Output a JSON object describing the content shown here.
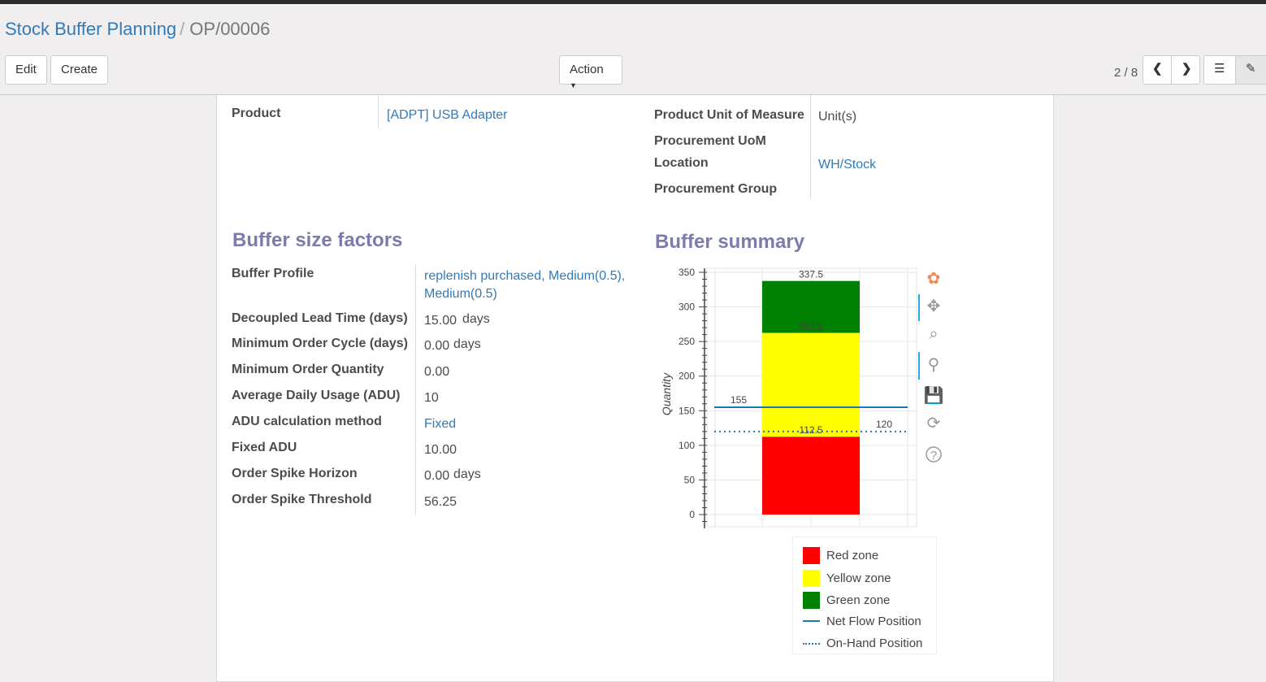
{
  "breadcrumb": {
    "parent": "Stock Buffer Planning",
    "current": "OP/00006"
  },
  "buttons": {
    "edit": "Edit",
    "create": "Create",
    "action": "Action"
  },
  "pager": {
    "text": "2 / 8"
  },
  "header_fields": {
    "product_label": "Product",
    "product_value": "[ADPT] USB Adapter",
    "uom_label": "Product Unit of Measure",
    "uom_value": "Unit(s)",
    "proc_uom_label": "Procurement UoM",
    "location_label": "Location",
    "location_value": "WH/Stock",
    "proc_group_label": "Procurement Group"
  },
  "factors": {
    "title": "Buffer size factors",
    "rows": [
      {
        "label": "Buffer Profile",
        "value": "replenish purchased, Medium(0.5),",
        "value2": "Medium(0.5)",
        "unit": ""
      },
      {
        "label": "Decoupled Lead Time (days)",
        "value": "15.00",
        "unit": "days"
      },
      {
        "label": "Minimum Order Cycle (days)",
        "value": "0.00",
        "unit": "days"
      },
      {
        "label": "Minimum Order Quantity",
        "value": "0.00",
        "unit": ""
      },
      {
        "label": "Average Daily Usage (ADU)",
        "value": "10",
        "unit": ""
      },
      {
        "label": "ADU calculation method",
        "value": "Fixed",
        "unit": ""
      },
      {
        "label": "Fixed ADU",
        "value": "10.00",
        "unit": ""
      },
      {
        "label": "Order Spike Horizon",
        "value": "0.00",
        "unit": "days"
      },
      {
        "label": "Order Spike Threshold",
        "value": "56.25",
        "unit": ""
      }
    ]
  },
  "summary": {
    "title": "Buffer summary"
  },
  "chart_data": {
    "type": "bar",
    "ylabel": "Quantity",
    "ylim": [
      0,
      350
    ],
    "yticks": [
      0,
      50,
      100,
      150,
      200,
      250,
      300,
      350
    ],
    "grid": true,
    "stacked_zones": [
      {
        "name": "Red zone",
        "from": 0,
        "to": 112.5,
        "label": "112.5",
        "color": "#ff0000"
      },
      {
        "name": "Yellow zone",
        "from": 112.5,
        "to": 262.5,
        "label": "262.5",
        "color": "#ffff00"
      },
      {
        "name": "Green zone",
        "from": 262.5,
        "to": 337.5,
        "label": "337.5",
        "color": "#008000"
      }
    ],
    "lines": [
      {
        "name": "Net Flow Position",
        "value": 155,
        "label": "155",
        "style": "solid",
        "color": "#1f77b4"
      },
      {
        "name": "On-Hand Position",
        "value": 120,
        "label": "120",
        "style": "dotted",
        "color": "#1f77b4"
      }
    ],
    "legend_position": "bottom"
  }
}
